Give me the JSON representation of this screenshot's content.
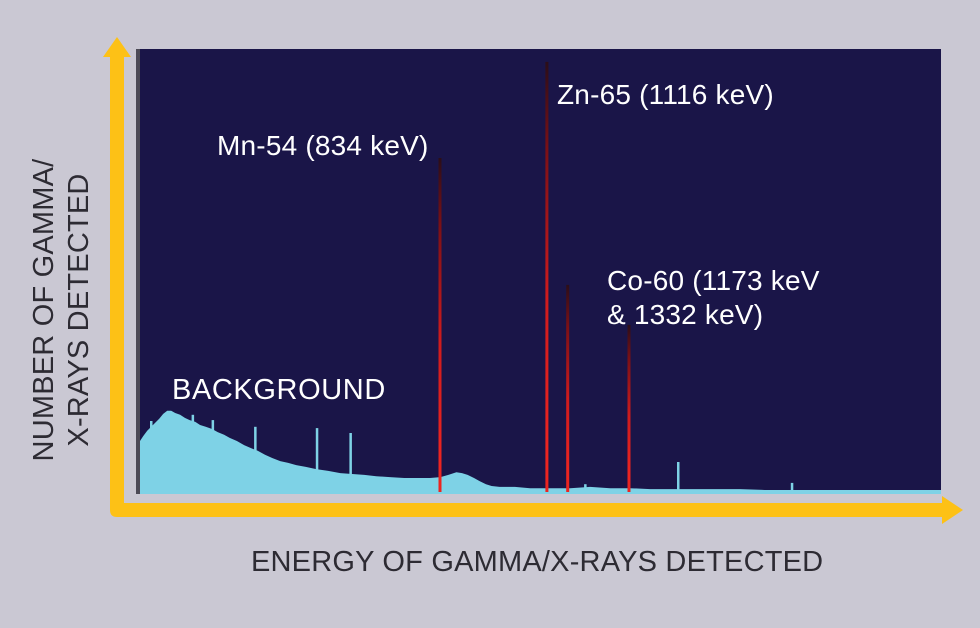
{
  "figure": {
    "background_color": "#cac8d3",
    "plot_bg_color": "#1a1548",
    "plot_border_color": "#4c4a56",
    "axis_color": "#fdc116",
    "spectrum_color": "#7ed2e6",
    "text_color_light": "#ffffff",
    "text_color_dark": "#2d2b33",
    "peak_gradient": {
      "top": "#2b0e18",
      "upper": "#7a1016",
      "mid": "#cf1b1d",
      "bottom": "#ec2420"
    }
  },
  "annotations": {
    "mn54": "Mn-54 (834 keV)",
    "zn65": "Zn-65 (1116 keV)",
    "co60_line1": "Co-60 (1173 keV",
    "co60_line2": "& 1332 keV)",
    "background": "BACKGROUND"
  },
  "labels": {
    "ylabel_line1": "NUMBER OF GAMMA/",
    "ylabel_line2": "X-RAYS DETECTED"
  },
  "chart_data": {
    "type": "area",
    "xlabel": "ENERGY OF GAMMA/X-RAYS DETECTED",
    "ylabel": "NUMBER OF GAMMA/X-RAYS DETECTED",
    "axes_numeric": false,
    "legend": "none",
    "background_label": "BACKGROUND",
    "peaks": [
      {
        "id": "mn54",
        "isotope": "Mn-54",
        "energy_keV": 834,
        "label": "Mn-54 (834 keV)",
        "x_frac": 0.3745,
        "height_frac": 0.755
      },
      {
        "id": "zn65",
        "isotope": "Zn-65",
        "energy_keV": 1116,
        "label": "Zn-65 (1116 keV)",
        "x_frac": 0.508,
        "height_frac": 0.971
      },
      {
        "id": "co60_1173",
        "isotope": "Co-60",
        "energy_keV": 1173,
        "label": "Co-60 (1173 keV & 1332 keV)",
        "x_frac": 0.534,
        "height_frac": 0.47
      },
      {
        "id": "co60_1332",
        "isotope": "Co-60",
        "energy_keV": 1332,
        "label": "Co-60 (1173 keV & 1332 keV)",
        "x_frac": 0.6105,
        "height_frac": 0.38
      }
    ],
    "background_profile": [
      [
        0.0,
        0.119
      ],
      [
        0.004,
        0.13
      ],
      [
        0.009,
        0.142
      ],
      [
        0.014,
        0.151
      ],
      [
        0.019,
        0.16
      ],
      [
        0.024,
        0.169
      ],
      [
        0.029,
        0.18
      ],
      [
        0.034,
        0.187
      ],
      [
        0.039,
        0.187
      ],
      [
        0.044,
        0.182
      ],
      [
        0.05,
        0.178
      ],
      [
        0.056,
        0.171
      ],
      [
        0.062,
        0.166
      ],
      [
        0.069,
        0.162
      ],
      [
        0.075,
        0.155
      ],
      [
        0.082,
        0.151
      ],
      [
        0.09,
        0.146
      ],
      [
        0.097,
        0.139
      ],
      [
        0.105,
        0.133
      ],
      [
        0.112,
        0.126
      ],
      [
        0.121,
        0.119
      ],
      [
        0.13,
        0.11
      ],
      [
        0.139,
        0.103
      ],
      [
        0.147,
        0.097
      ],
      [
        0.156,
        0.088
      ],
      [
        0.165,
        0.081
      ],
      [
        0.175,
        0.074
      ],
      [
        0.185,
        0.07
      ],
      [
        0.195,
        0.065
      ],
      [
        0.207,
        0.061
      ],
      [
        0.22,
        0.056
      ],
      [
        0.235,
        0.052
      ],
      [
        0.25,
        0.047
      ],
      [
        0.265,
        0.045
      ],
      [
        0.28,
        0.043
      ],
      [
        0.295,
        0.04
      ],
      [
        0.312,
        0.038
      ],
      [
        0.33,
        0.036
      ],
      [
        0.347,
        0.036
      ],
      [
        0.362,
        0.036
      ],
      [
        0.375,
        0.038
      ],
      [
        0.385,
        0.043
      ],
      [
        0.395,
        0.049
      ],
      [
        0.402,
        0.047
      ],
      [
        0.409,
        0.043
      ],
      [
        0.417,
        0.036
      ],
      [
        0.424,
        0.029
      ],
      [
        0.432,
        0.022
      ],
      [
        0.439,
        0.018
      ],
      [
        0.449,
        0.016
      ],
      [
        0.468,
        0.016
      ],
      [
        0.487,
        0.013
      ],
      [
        0.512,
        0.013
      ],
      [
        0.537,
        0.013
      ],
      [
        0.562,
        0.016
      ],
      [
        0.587,
        0.013
      ],
      [
        0.612,
        0.013
      ],
      [
        0.637,
        0.011
      ],
      [
        0.662,
        0.011
      ],
      [
        0.687,
        0.011
      ],
      [
        0.718,
        0.011
      ],
      [
        0.749,
        0.011
      ],
      [
        0.78,
        0.009
      ],
      [
        0.811,
        0.009
      ],
      [
        0.843,
        0.009
      ],
      [
        0.88,
        0.009
      ],
      [
        0.918,
        0.009
      ],
      [
        0.955,
        0.009
      ],
      [
        1.0,
        0.009
      ]
    ],
    "background_spikes": [
      [
        0.014,
        0.164
      ],
      [
        0.066,
        0.178
      ],
      [
        0.091,
        0.166
      ],
      [
        0.144,
        0.151
      ],
      [
        0.221,
        0.148
      ],
      [
        0.263,
        0.137
      ],
      [
        0.556,
        0.022
      ],
      [
        0.672,
        0.072
      ],
      [
        0.814,
        0.025
      ]
    ]
  }
}
